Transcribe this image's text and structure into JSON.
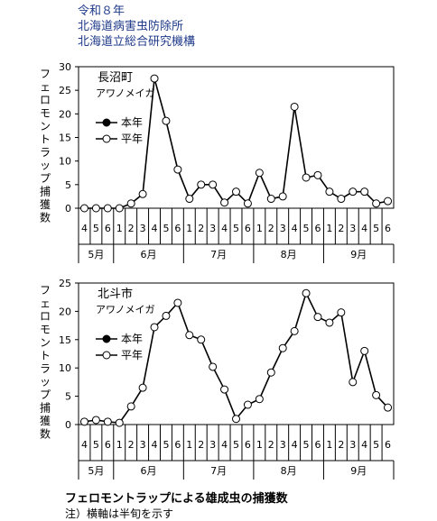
{
  "header": {
    "line1": "令和８年",
    "line2": "北海道病害虫防除所",
    "line3": "北海道立総合研究機構"
  },
  "caption": "フェロモントラップによる雄成虫の捕獲数",
  "note": "注）横軸は半旬を示す",
  "chart_data": [
    {
      "type": "line",
      "location": "長沼町",
      "species": "アワノメイガ",
      "ylabel": "フェロモントラップ捕獲数",
      "ylim": [
        0,
        30
      ],
      "yticks": [
        0,
        5,
        10,
        15,
        20,
        25,
        30
      ],
      "x_ticks": [
        "4",
        "5",
        "6",
        "1",
        "2",
        "3",
        "4",
        "5",
        "6",
        "1",
        "2",
        "3",
        "4",
        "5",
        "6",
        "1",
        "2",
        "3",
        "4",
        "5",
        "6",
        "1",
        "2",
        "3",
        "4",
        "5",
        "6"
      ],
      "months": [
        {
          "label": "5月",
          "span": 3
        },
        {
          "label": "6月",
          "span": 6
        },
        {
          "label": "7月",
          "span": 6
        },
        {
          "label": "8月",
          "span": 6
        },
        {
          "label": "9月",
          "span": 6
        }
      ],
      "legend": [
        "本年",
        "平年"
      ],
      "series": [
        {
          "name": "本年",
          "marker": "filled",
          "values": []
        },
        {
          "name": "平年",
          "marker": "open",
          "values": [
            0,
            0,
            0,
            0,
            1,
            3,
            27.5,
            18.5,
            8.2,
            2,
            5,
            5,
            1.2,
            3.5,
            1,
            7.5,
            2,
            2.5,
            21.5,
            6.5,
            7,
            3.5,
            2,
            3.5,
            3.5,
            1,
            1.5
          ]
        }
      ]
    },
    {
      "type": "line",
      "location": "北斗市",
      "species": "アワノメイガ",
      "ylabel": "フェロモントラップ捕獲数",
      "ylim": [
        0,
        25
      ],
      "yticks": [
        0,
        5,
        10,
        15,
        20,
        25
      ],
      "x_ticks": [
        "4",
        "5",
        "6",
        "1",
        "2",
        "3",
        "4",
        "5",
        "6",
        "1",
        "2",
        "3",
        "4",
        "5",
        "6",
        "1",
        "2",
        "3",
        "4",
        "5",
        "6",
        "1",
        "2",
        "3",
        "4",
        "5",
        "6"
      ],
      "months": [
        {
          "label": "5月",
          "span": 3
        },
        {
          "label": "6月",
          "span": 6
        },
        {
          "label": "7月",
          "span": 6
        },
        {
          "label": "8月",
          "span": 6
        },
        {
          "label": "9月",
          "span": 6
        }
      ],
      "legend": [
        "本年",
        "平年"
      ],
      "series": [
        {
          "name": "本年",
          "marker": "filled",
          "values": []
        },
        {
          "name": "平年",
          "marker": "open",
          "values": [
            0.5,
            0.8,
            0.5,
            0.3,
            3.2,
            6.5,
            17.2,
            19.2,
            21.5,
            15.8,
            15,
            10.2,
            6.2,
            1,
            3.5,
            4.5,
            9.2,
            13.5,
            16.5,
            23.2,
            19,
            18,
            19.8,
            7.5,
            13,
            5.2,
            3
          ]
        }
      ]
    }
  ]
}
